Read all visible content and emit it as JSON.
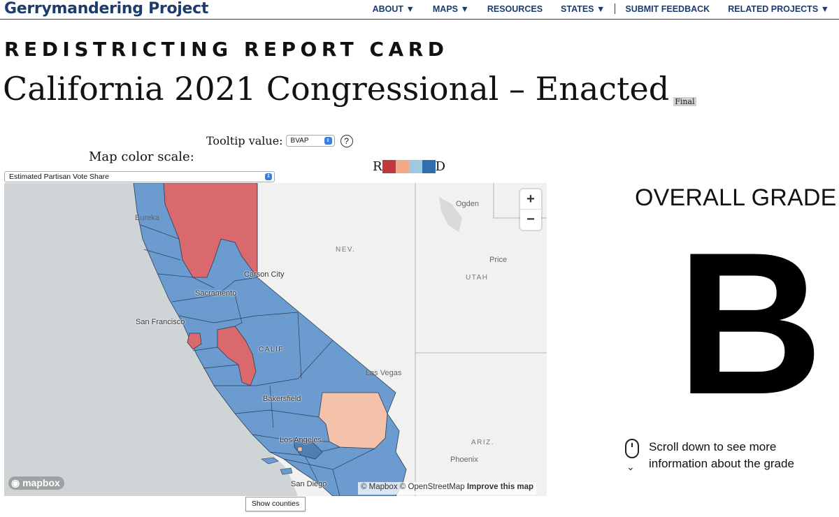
{
  "header": {
    "brand": "Gerrymandering Project",
    "nav": [
      {
        "label": "ABOUT ▼"
      },
      {
        "label": "MAPS ▼"
      },
      {
        "label": "RESOURCES"
      },
      {
        "label": "STATES ▼"
      },
      {
        "label": "SUBMIT FEEDBACK"
      },
      {
        "label": "RELATED PROJECTS ▼"
      }
    ]
  },
  "page": {
    "eyebrow": "REDISTRICTING REPORT CARD",
    "title": "California 2021 Congressional – Enacted",
    "badge": "Final"
  },
  "controls": {
    "tooltip_label": "Tooltip value:",
    "tooltip_value": "BVAP",
    "help": "?",
    "scale_label": "Map color scale:",
    "scale_value": "Estimated Partisan Vote Share"
  },
  "legend": {
    "left": "R",
    "right": "D",
    "colors": [
      "#c0393f",
      "#f2a98a",
      "#9ec9e0",
      "#2f6fad"
    ]
  },
  "map": {
    "zoom_in": "+",
    "zoom_out": "−",
    "labels": {
      "eureka": "Eureka",
      "nev": "NEV.",
      "carson_city": "Carson City",
      "sacramento": "Sacramento",
      "san_francisco": "San Francisco",
      "calif": "CALIF.",
      "bakersfield": "Bakersfield",
      "las_vegas": "Las Vegas",
      "los_angeles": "Los Angeles",
      "san_diego": "San Diego",
      "ogden": "Ogden",
      "price": "Price",
      "utah": "UTAH",
      "ariz": "ARIZ.",
      "phoenix": "Phoenix"
    },
    "logo": "mapbox",
    "attribution_1": "© Mapbox © OpenStreetMap",
    "attribution_2": "Improve this map",
    "show_counties": "Show counties",
    "colors": {
      "dem": "#6b9bcf",
      "rep": "#d9696d",
      "lean_rep": "#f4c1ab",
      "ocean": "#cfd4d6",
      "land": "#f1f1ef"
    }
  },
  "grade": {
    "title": "OVERALL GRADE",
    "letter": "B",
    "scroll_line1": "Scroll down to see more",
    "scroll_line2": "information about the grade"
  }
}
